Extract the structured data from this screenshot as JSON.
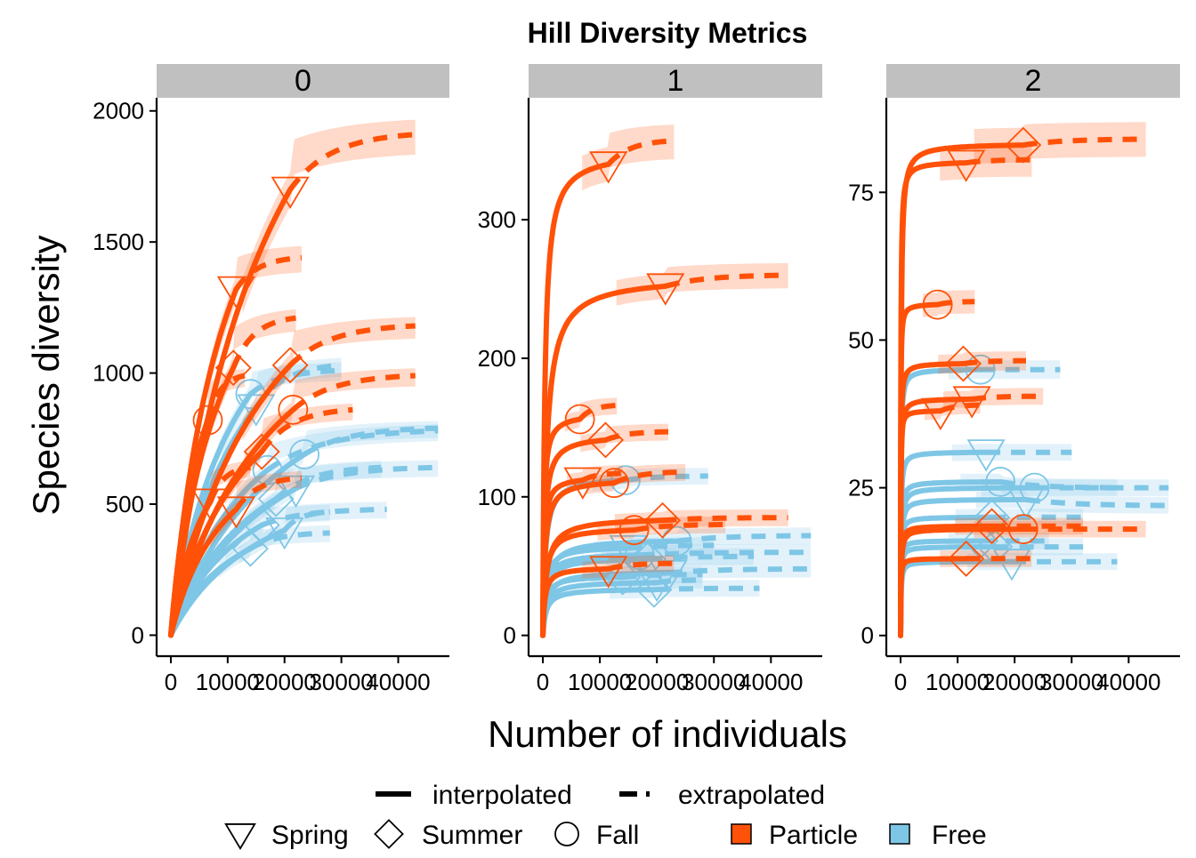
{
  "colors": {
    "Particle": "#ff5108",
    "Free": "#7ec6e6",
    "strip": "#c0c0c0",
    "axis": "#000000"
  },
  "chart_data": {
    "type": "line",
    "title": "Hill Diversity Metrics",
    "xlabel": "Number of individuals",
    "ylabel": "Species diversity",
    "x_ticks": [
      0,
      10000,
      20000,
      30000,
      40000
    ],
    "x_tick_labels": [
      "0",
      "10000",
      "20000",
      "30000",
      "40000"
    ],
    "xlim": [
      -2500,
      49000
    ],
    "line_types": [
      "interpolated",
      "extrapolated"
    ],
    "seasons": [
      {
        "name": "Spring",
        "shape": "triangle-down"
      },
      {
        "name": "Summer",
        "shape": "diamond"
      },
      {
        "name": "Fall",
        "shape": "circle"
      }
    ],
    "fractions": [
      {
        "name": "Particle",
        "color": "#ff5108"
      },
      {
        "name": "Free",
        "color": "#7ec6e6"
      }
    ],
    "facets": [
      {
        "label": "0",
        "ylim": [
          -80,
          2050
        ],
        "y_ticks": [
          0,
          500,
          1000,
          1500,
          2000
        ],
        "series": [
          {
            "fraction": "Particle",
            "season": "Spring",
            "n": 21000,
            "y": 1700,
            "end": 1910,
            "end_n": 43000
          },
          {
            "fraction": "Particle",
            "season": "Spring",
            "n": 11500,
            "y": 1320,
            "end": 1440,
            "end_n": 23000
          },
          {
            "fraction": "Particle",
            "season": "Summer",
            "n": 11000,
            "y": 1020,
            "end": 1210,
            "end_n": 22000
          },
          {
            "fraction": "Particle",
            "season": "Summer",
            "n": 21000,
            "y": 1030,
            "end": 1180,
            "end_n": 43000
          },
          {
            "fraction": "Particle",
            "season": "Fall",
            "n": 6500,
            "y": 820,
            "end": 990,
            "end_n": 13000
          },
          {
            "fraction": "Particle",
            "season": "Fall",
            "n": 21500,
            "y": 860,
            "end": 990,
            "end_n": 43000
          },
          {
            "fraction": "Particle",
            "season": "Summer",
            "n": 16000,
            "y": 700,
            "end": 860,
            "end_n": 32000
          },
          {
            "fraction": "Particle",
            "season": "Spring",
            "n": 7000,
            "y": 510,
            "end": 640,
            "end_n": 14000
          },
          {
            "fraction": "Particle",
            "season": "Spring",
            "n": 11500,
            "y": 480,
            "end": 600,
            "end_n": 23000
          },
          {
            "fraction": "Free",
            "season": "Fall",
            "n": 14000,
            "y": 920,
            "end": 1010,
            "end_n": 30000
          },
          {
            "fraction": "Free",
            "season": "Spring",
            "n": 15000,
            "y": 870,
            "end": 1030,
            "end_n": 30000
          },
          {
            "fraction": "Free",
            "season": "Fall",
            "n": 17000,
            "y": 630,
            "end": 780,
            "end_n": 47000
          },
          {
            "fraction": "Free",
            "season": "Fall",
            "n": 23500,
            "y": 690,
            "end": 790,
            "end_n": 47000
          },
          {
            "fraction": "Free",
            "season": "Spring",
            "n": 22000,
            "y": 560,
            "end": 640,
            "end_n": 47000
          },
          {
            "fraction": "Free",
            "season": "Summer",
            "n": 18500,
            "y": 520,
            "end": 640,
            "end_n": 37000
          },
          {
            "fraction": "Free",
            "season": "Summer",
            "n": 16000,
            "y": 420,
            "end": 480,
            "end_n": 38000
          },
          {
            "fraction": "Free",
            "season": "Spring",
            "n": 20000,
            "y": 400,
            "end": 470,
            "end_n": 28000
          },
          {
            "fraction": "Free",
            "season": "Summer",
            "n": 14000,
            "y": 330,
            "end": 390,
            "end_n": 28000
          }
        ]
      },
      {
        "label": "1",
        "ylim": [
          -15,
          388
        ],
        "y_ticks": [
          0,
          100,
          200,
          300
        ],
        "series": [
          {
            "fraction": "Particle",
            "season": "Spring",
            "n": 11500,
            "y": 340,
            "end": 357,
            "end_n": 23000
          },
          {
            "fraction": "Particle",
            "season": "Spring",
            "n": 21500,
            "y": 252,
            "end": 260,
            "end_n": 43000
          },
          {
            "fraction": "Particle",
            "season": "Fall",
            "n": 6500,
            "y": 156,
            "end": 166,
            "end_n": 13000
          },
          {
            "fraction": "Particle",
            "season": "Summer",
            "n": 11000,
            "y": 141,
            "end": 147,
            "end_n": 22000
          },
          {
            "fraction": "Particle",
            "season": "Spring",
            "n": 7000,
            "y": 112,
            "end": 117,
            "end_n": 14000
          },
          {
            "fraction": "Particle",
            "season": "Fall",
            "n": 12500,
            "y": 110,
            "end": 118,
            "end_n": 25000
          },
          {
            "fraction": "Particle",
            "season": "Summer",
            "n": 21000,
            "y": 83,
            "end": 85,
            "end_n": 43000
          },
          {
            "fraction": "Particle",
            "season": "Fall",
            "n": 16000,
            "y": 76,
            "end": 80,
            "end_n": 32000
          },
          {
            "fraction": "Particle",
            "season": "Spring",
            "n": 11500,
            "y": 48,
            "end": 52,
            "end_n": 23000
          },
          {
            "fraction": "Free",
            "season": "Fall",
            "n": 14500,
            "y": 112,
            "end": 115,
            "end_n": 29000
          },
          {
            "fraction": "Free",
            "season": "Fall",
            "n": 23500,
            "y": 68,
            "end": 72,
            "end_n": 47000
          },
          {
            "fraction": "Free",
            "season": "Spring",
            "n": 15000,
            "y": 63,
            "end": 65,
            "end_n": 30000
          },
          {
            "fraction": "Free",
            "season": "Fall",
            "n": 17000,
            "y": 58,
            "end": 60,
            "end_n": 47000
          },
          {
            "fraction": "Free",
            "season": "Summer",
            "n": 18500,
            "y": 55,
            "end": 57,
            "end_n": 37000
          },
          {
            "fraction": "Free",
            "season": "Spring",
            "n": 22000,
            "y": 45,
            "end": 48,
            "end_n": 47000
          },
          {
            "fraction": "Free",
            "season": "Summer",
            "n": 14000,
            "y": 42,
            "end": 44,
            "end_n": 28000
          },
          {
            "fraction": "Free",
            "season": "Spring",
            "n": 20000,
            "y": 38,
            "end": 40,
            "end_n": 28000
          },
          {
            "fraction": "Free",
            "season": "Summer",
            "n": 19500,
            "y": 33,
            "end": 34,
            "end_n": 38000
          }
        ]
      },
      {
        "label": "2",
        "ylim": [
          -3.5,
          91
        ],
        "y_ticks": [
          0,
          25,
          50,
          75
        ],
        "series": [
          {
            "fraction": "Particle",
            "season": "Summer",
            "n": 21500,
            "y": 83,
            "end": 84,
            "end_n": 43000
          },
          {
            "fraction": "Particle",
            "season": "Spring",
            "n": 11500,
            "y": 80,
            "end": 80.5,
            "end_n": 23000
          },
          {
            "fraction": "Particle",
            "season": "Fall",
            "n": 6500,
            "y": 56,
            "end": 56.5,
            "end_n": 13000
          },
          {
            "fraction": "Particle",
            "season": "Summer",
            "n": 11000,
            "y": 46,
            "end": 46.5,
            "end_n": 22000
          },
          {
            "fraction": "Particle",
            "season": "Spring",
            "n": 12500,
            "y": 40,
            "end": 40.5,
            "end_n": 25000
          },
          {
            "fraction": "Particle",
            "season": "Spring",
            "n": 7000,
            "y": 38,
            "end": 39,
            "end_n": 14000
          },
          {
            "fraction": "Particle",
            "season": "Fall",
            "n": 21500,
            "y": 18,
            "end": 18,
            "end_n": 43000
          },
          {
            "fraction": "Particle",
            "season": "Summer",
            "n": 16000,
            "y": 18.5,
            "end": 18.5,
            "end_n": 32000
          },
          {
            "fraction": "Particle",
            "season": "Summer",
            "n": 11500,
            "y": 13,
            "end": 13,
            "end_n": 23000
          },
          {
            "fraction": "Free",
            "season": "Fall",
            "n": 14000,
            "y": 45,
            "end": 45,
            "end_n": 28000
          },
          {
            "fraction": "Free",
            "season": "Spring",
            "n": 15000,
            "y": 31,
            "end": 31,
            "end_n": 30000
          },
          {
            "fraction": "Free",
            "season": "Fall",
            "n": 17500,
            "y": 26,
            "end": 25,
            "end_n": 38000
          },
          {
            "fraction": "Free",
            "season": "Fall",
            "n": 23500,
            "y": 25,
            "end": 25,
            "end_n": 47000
          },
          {
            "fraction": "Free",
            "season": "Spring",
            "n": 22000,
            "y": 23,
            "end": 22,
            "end_n": 47000
          },
          {
            "fraction": "Free",
            "season": "Summer",
            "n": 16000,
            "y": 20,
            "end": 20,
            "end_n": 32000
          },
          {
            "fraction": "Free",
            "season": "Summer",
            "n": 14000,
            "y": 16,
            "end": 16,
            "end_n": 26000
          },
          {
            "fraction": "Free",
            "season": "Spring",
            "n": 19500,
            "y": 12.5,
            "end": 12.5,
            "end_n": 38000
          },
          {
            "fraction": "Free",
            "season": "Summer",
            "n": 16500,
            "y": 15,
            "end": 15,
            "end_n": 32000
          }
        ]
      }
    ]
  }
}
